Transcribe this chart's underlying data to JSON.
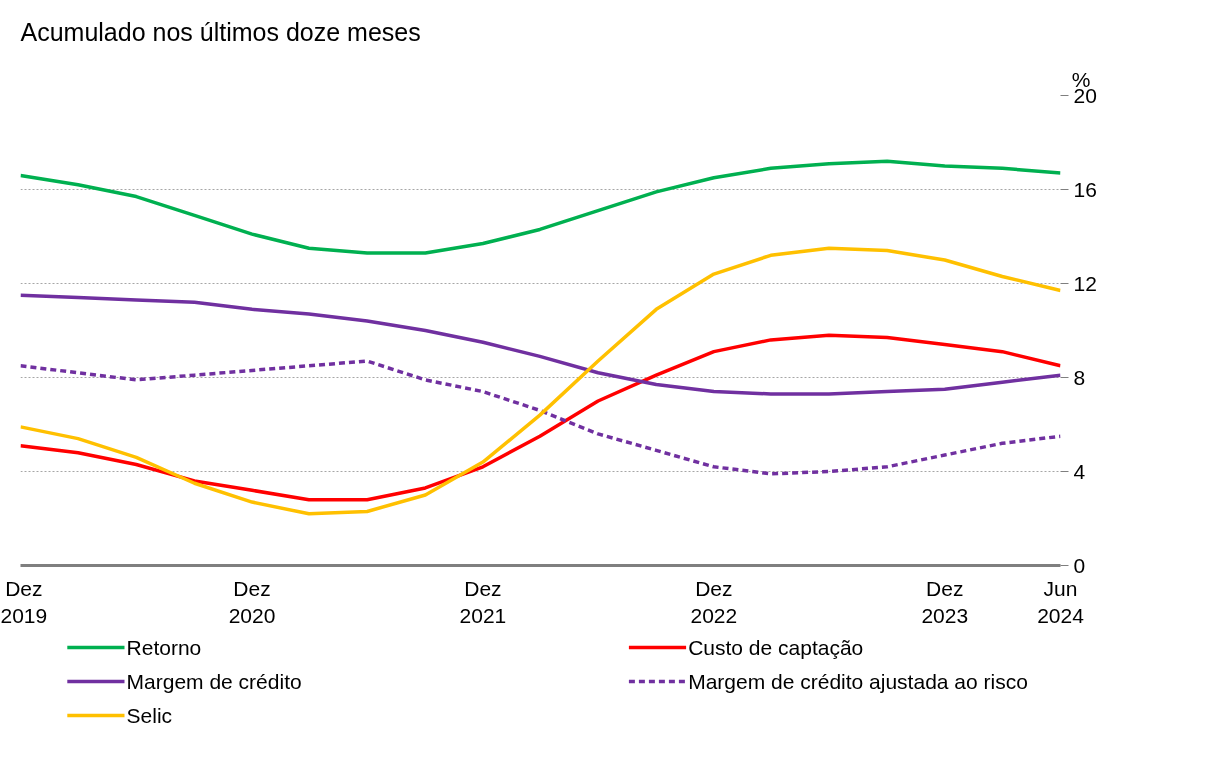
{
  "chart_data": {
    "type": "line",
    "title": "Acumulado nos últimos doze meses",
    "ylabel": "%",
    "x": [
      "2019-12",
      "2020-03",
      "2020-06",
      "2020-09",
      "2020-12",
      "2021-03",
      "2021-06",
      "2021-09",
      "2021-12",
      "2022-03",
      "2022-06",
      "2022-09",
      "2022-12",
      "2023-03",
      "2023-06",
      "2023-09",
      "2023-12",
      "2024-03",
      "2024-06"
    ],
    "series": [
      {
        "name": "Retorno",
        "color": "#00b050",
        "values": [
          16.6,
          16.2,
          15.7,
          14.9,
          14.1,
          13.5,
          13.3,
          13.3,
          13.7,
          14.3,
          15.1,
          15.9,
          16.5,
          16.9,
          17.1,
          17.2,
          17.0,
          16.9,
          16.7
        ]
      },
      {
        "name": "Custo de captação",
        "color": "#ff0000",
        "values": [
          5.1,
          4.8,
          4.3,
          3.6,
          3.2,
          2.8,
          2.8,
          3.3,
          4.2,
          5.5,
          7.0,
          8.1,
          9.1,
          9.6,
          9.8,
          9.7,
          9.4,
          9.1,
          8.5
        ]
      },
      {
        "name": "Margem de crédito",
        "color": "#7030a0",
        "values": [
          11.5,
          11.4,
          11.3,
          11.2,
          10.9,
          10.7,
          10.4,
          10.0,
          9.5,
          8.9,
          8.2,
          7.7,
          7.4,
          7.3,
          7.3,
          7.4,
          7.5,
          7.8,
          8.1
        ]
      },
      {
        "name": "Margem de crédito ajustada ao risco",
        "color": "#7030a0",
        "line_style": "dashed",
        "values": [
          8.5,
          8.2,
          7.9,
          8.1,
          8.3,
          8.5,
          8.7,
          7.9,
          7.4,
          6.6,
          5.6,
          4.9,
          4.2,
          3.9,
          4.0,
          4.2,
          4.7,
          5.2,
          5.5
        ]
      },
      {
        "name": "Selic",
        "color": "#ffc000",
        "values": [
          5.9,
          5.4,
          4.6,
          3.5,
          2.7,
          2.2,
          2.3,
          3.0,
          4.4,
          6.4,
          8.7,
          10.9,
          12.4,
          13.2,
          13.5,
          13.4,
          13.0,
          12.3,
          11.7
        ]
      }
    ],
    "xlim": [
      "2019-12",
      "2024-06"
    ],
    "xticks": [
      {
        "value": "2019-12",
        "label": "Dez\n2019"
      },
      {
        "value": "2020-12",
        "label": "Dez\n2020"
      },
      {
        "value": "2021-12",
        "label": "Dez\n2021"
      },
      {
        "value": "2022-12",
        "label": "Dez\n2022"
      },
      {
        "value": "2023-12",
        "label": "Dez\n2023"
      },
      {
        "value": "2024-06",
        "label": "Jun\n2024"
      }
    ],
    "ylim": [
      0,
      20
    ],
    "yticks": [
      0,
      4,
      8,
      12,
      16,
      20
    ],
    "grid": "y",
    "legend": "bottom",
    "line_style": "solid",
    "marker": "none"
  }
}
